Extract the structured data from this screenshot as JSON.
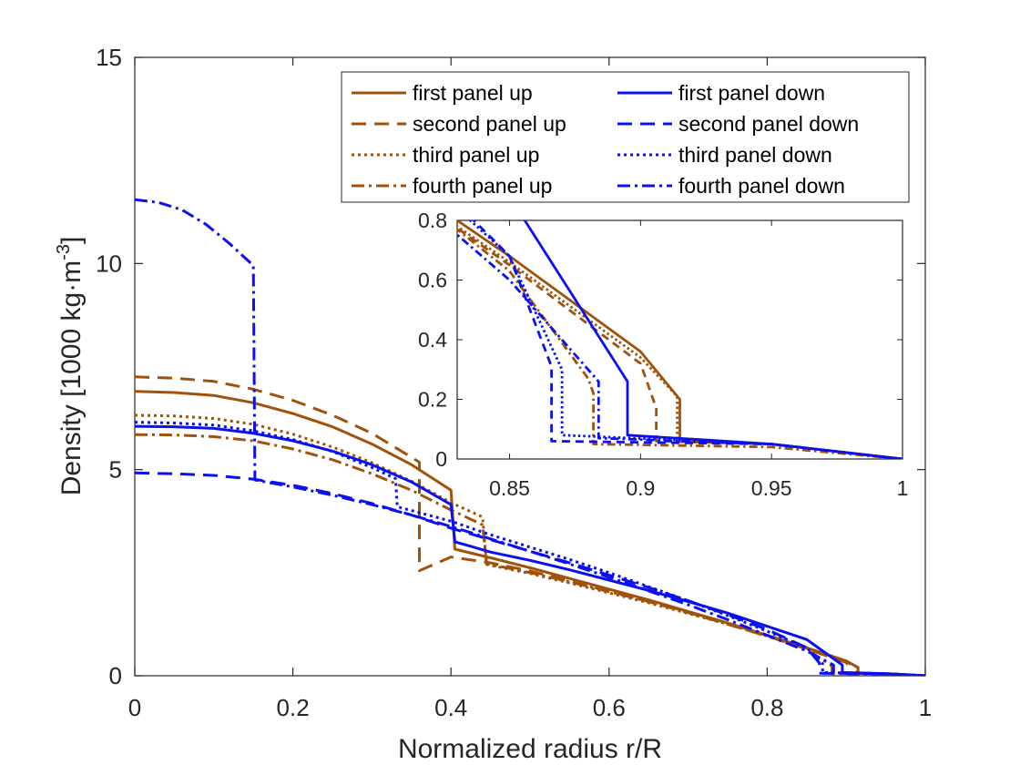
{
  "chart_data": {
    "type": "line",
    "title": "",
    "xlabel": "Normalized radius r/R",
    "ylabel_main": "Density [1000 kg·m",
    "ylabel_exp": "-3",
    "ylabel_close": "]",
    "xlim": [
      0,
      1
    ],
    "ylim": [
      0,
      15
    ],
    "xticks": [
      0,
      0.2,
      0.4,
      0.6,
      0.8,
      1
    ],
    "xtick_labels": [
      "0",
      "0.2",
      "0.4",
      "0.6",
      "0.8",
      "1"
    ],
    "yticks": [
      0,
      5,
      10,
      15
    ],
    "ytick_labels": [
      "0",
      "5",
      "10",
      "15"
    ],
    "legend_position": "top-right",
    "colors": {
      "up": "#a0520a",
      "down": "#0a10f0"
    },
    "series": [
      {
        "name": "first panel up",
        "color": "#a0520a",
        "dash": "solid",
        "x": [
          0,
          0.05,
          0.1,
          0.15,
          0.2,
          0.25,
          0.3,
          0.35,
          0.4,
          0.405,
          0.45,
          0.5,
          0.55,
          0.6,
          0.65,
          0.7,
          0.75,
          0.8,
          0.85,
          0.9,
          0.915,
          0.915,
          0.95,
          1.0
        ],
        "y": [
          6.9,
          6.87,
          6.8,
          6.62,
          6.36,
          6.04,
          5.62,
          5.12,
          4.5,
          3.07,
          2.86,
          2.62,
          2.36,
          2.1,
          1.84,
          1.56,
          1.28,
          0.98,
          0.68,
          0.36,
          0.2,
          0.06,
          0.05,
          0.0
        ]
      },
      {
        "name": "second panel up",
        "color": "#a0520a",
        "dash": "long",
        "x": [
          0,
          0.05,
          0.1,
          0.15,
          0.2,
          0.25,
          0.3,
          0.35,
          0.36,
          0.36,
          0.4,
          0.45,
          0.5,
          0.55,
          0.6,
          0.65,
          0.7,
          0.75,
          0.8,
          0.85,
          0.9,
          0.906,
          0.906,
          0.95,
          1.0
        ],
        "y": [
          7.25,
          7.22,
          7.14,
          6.95,
          6.68,
          6.32,
          5.88,
          5.3,
          5.18,
          2.55,
          2.88,
          2.74,
          2.54,
          2.3,
          2.05,
          1.8,
          1.53,
          1.25,
          0.96,
          0.65,
          0.32,
          0.17,
          0.06,
          0.05,
          0.0
        ]
      },
      {
        "name": "third panel up",
        "color": "#a0520a",
        "dash": "dot",
        "x": [
          0,
          0.05,
          0.1,
          0.15,
          0.2,
          0.25,
          0.3,
          0.35,
          0.4,
          0.44,
          0.445,
          0.5,
          0.55,
          0.6,
          0.65,
          0.7,
          0.75,
          0.8,
          0.85,
          0.9,
          0.914,
          0.914,
          0.95,
          1.0
        ],
        "y": [
          6.32,
          6.3,
          6.24,
          6.1,
          5.86,
          5.55,
          5.17,
          4.72,
          4.2,
          3.85,
          2.7,
          2.48,
          2.25,
          2.01,
          1.77,
          1.51,
          1.25,
          0.96,
          0.66,
          0.34,
          0.21,
          0.07,
          0.05,
          0.0
        ]
      },
      {
        "name": "fourth panel up",
        "color": "#a0520a",
        "dash": "dashdot",
        "x": [
          0,
          0.05,
          0.1,
          0.15,
          0.2,
          0.25,
          0.3,
          0.35,
          0.4,
          0.44,
          0.445,
          0.5,
          0.55,
          0.6,
          0.65,
          0.7,
          0.75,
          0.8,
          0.85,
          0.88,
          0.882,
          0.882,
          0.95,
          1.0
        ],
        "y": [
          5.85,
          5.84,
          5.8,
          5.7,
          5.5,
          5.24,
          4.9,
          4.5,
          4.02,
          3.66,
          2.72,
          2.5,
          2.28,
          2.04,
          1.8,
          1.55,
          1.28,
          0.98,
          0.63,
          0.27,
          0.22,
          0.05,
          0.04,
          0.0
        ]
      },
      {
        "name": "first panel down",
        "color": "#0a10f0",
        "dash": "solid",
        "x": [
          0,
          0.05,
          0.1,
          0.15,
          0.2,
          0.25,
          0.3,
          0.35,
          0.4,
          0.405,
          0.45,
          0.5,
          0.55,
          0.6,
          0.65,
          0.7,
          0.75,
          0.8,
          0.85,
          0.895,
          0.895,
          0.95,
          1.0
        ],
        "y": [
          6.05,
          6.04,
          6.0,
          5.88,
          5.7,
          5.45,
          5.12,
          4.7,
          4.15,
          3.25,
          3.0,
          2.8,
          2.57,
          2.32,
          2.07,
          1.8,
          1.52,
          1.2,
          0.88,
          0.26,
          0.08,
          0.05,
          0.0
        ]
      },
      {
        "name": "second panel down",
        "color": "#0a10f0",
        "dash": "long",
        "x": [
          0,
          0.05,
          0.1,
          0.15,
          0.2,
          0.25,
          0.3,
          0.35,
          0.4,
          0.45,
          0.5,
          0.55,
          0.6,
          0.65,
          0.7,
          0.75,
          0.8,
          0.85,
          0.866,
          0.866,
          0.95,
          1.0
        ],
        "y": [
          4.92,
          4.9,
          4.86,
          4.77,
          4.62,
          4.42,
          4.18,
          3.9,
          3.58,
          3.3,
          3.02,
          2.74,
          2.44,
          2.14,
          1.82,
          1.48,
          1.12,
          0.68,
          0.31,
          0.06,
          0.05,
          0.0
        ]
      },
      {
        "name": "third panel down",
        "color": "#0a10f0",
        "dash": "dot",
        "x": [
          0,
          0.05,
          0.1,
          0.15,
          0.2,
          0.25,
          0.3,
          0.33,
          0.332,
          0.4,
          0.45,
          0.5,
          0.55,
          0.6,
          0.65,
          0.7,
          0.75,
          0.8,
          0.85,
          0.87,
          0.87,
          0.95,
          1.0
        ],
        "y": [
          6.15,
          6.13,
          6.08,
          5.94,
          5.73,
          5.44,
          5.05,
          4.78,
          4.1,
          3.75,
          3.42,
          3.12,
          2.82,
          2.5,
          2.16,
          1.82,
          1.46,
          1.08,
          0.68,
          0.3,
          0.08,
          0.05,
          0.0
        ]
      },
      {
        "name": "fourth panel down",
        "color": "#0a10f0",
        "dash": "dashdot",
        "x": [
          0,
          0.03,
          0.06,
          0.09,
          0.12,
          0.15,
          0.152,
          0.2,
          0.25,
          0.3,
          0.35,
          0.4,
          0.45,
          0.5,
          0.55,
          0.6,
          0.65,
          0.7,
          0.75,
          0.8,
          0.85,
          0.884,
          0.884,
          0.95,
          1.0
        ],
        "y": [
          11.55,
          11.48,
          11.3,
          10.95,
          10.48,
          9.95,
          4.75,
          4.58,
          4.38,
          4.15,
          3.9,
          3.62,
          3.32,
          3.02,
          2.71,
          2.39,
          2.06,
          1.72,
          1.36,
          0.98,
          0.6,
          0.26,
          0.07,
          0.05,
          0.0
        ]
      }
    ],
    "inset": {
      "xlim": [
        0.83,
        1
      ],
      "ylim": [
        0,
        0.8
      ],
      "xticks": [
        0.85,
        0.9,
        0.95,
        1
      ],
      "xtick_labels": [
        "0.85",
        "0.9",
        "0.95",
        "1"
      ],
      "yticks": [
        0,
        0.2,
        0.4,
        0.6,
        0.8
      ],
      "ytick_labels": [
        "0",
        "0.2",
        "0.4",
        "0.6",
        "0.8"
      ]
    }
  }
}
